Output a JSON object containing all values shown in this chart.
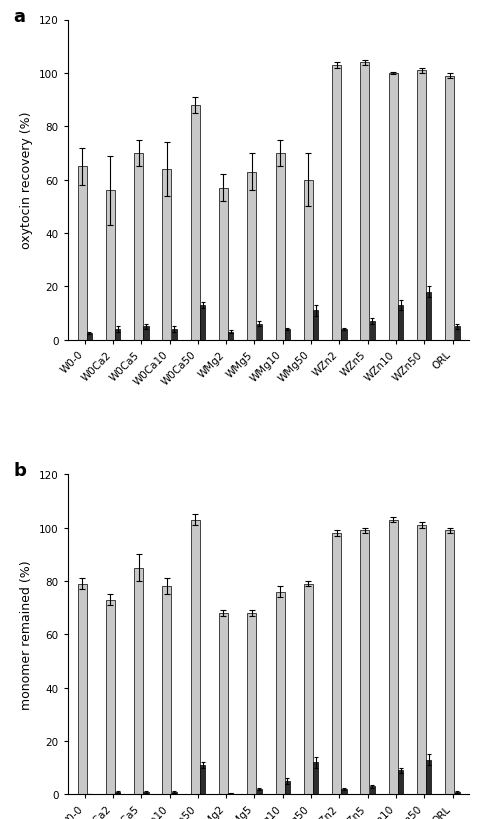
{
  "categories": [
    "W0-0",
    "W0Ca2",
    "W0Ca5",
    "W0Ca10",
    "W0Ca50",
    "WMg2",
    "WMg5",
    "WMg10",
    "WMg50",
    "WZn2",
    "WZn5",
    "WZn10",
    "WZn50",
    "ORL"
  ],
  "panel_a": {
    "ylabel": "oxytocin recovery (%)",
    "light_bars": [
      65,
      56,
      70,
      64,
      88,
      57,
      63,
      70,
      60,
      103,
      104,
      100,
      101,
      99
    ],
    "dark_bars": [
      2.5,
      4,
      5,
      4,
      13,
      3,
      6,
      4,
      11,
      4,
      7,
      13,
      18,
      5
    ],
    "light_err": [
      7,
      13,
      5,
      10,
      3,
      5,
      7,
      5,
      10,
      1,
      1,
      0.5,
      1,
      1
    ],
    "dark_err": [
      0.5,
      1,
      1,
      1,
      1,
      0.5,
      1,
      0.5,
      2,
      0.5,
      1,
      2,
      2,
      1
    ],
    "ylim": [
      0,
      120
    ],
    "yticks": [
      0,
      20,
      40,
      60,
      80,
      100,
      120
    ]
  },
  "panel_b": {
    "ylabel": "monomer remained (%)",
    "light_bars": [
      79,
      73,
      85,
      78,
      103,
      68,
      68,
      76,
      79,
      98,
      99,
      103,
      101,
      99
    ],
    "dark_bars": [
      0,
      1,
      1,
      1,
      11,
      0.5,
      2,
      5,
      12,
      2,
      3,
      9,
      13,
      1
    ],
    "light_err": [
      2,
      2,
      5,
      3,
      2,
      1,
      1,
      2,
      1,
      1,
      1,
      1,
      1,
      1
    ],
    "dark_err": [
      0,
      0.3,
      0.3,
      0.3,
      1,
      0.2,
      0.5,
      1,
      2,
      0.5,
      0.5,
      1,
      2,
      0.3
    ],
    "ylim": [
      0,
      120
    ],
    "yticks": [
      0,
      20,
      40,
      60,
      80,
      100,
      120
    ]
  },
  "light_color": "#c8c8c8",
  "dark_color": "#2d2d2d",
  "light_bar_width": 0.32,
  "dark_bar_width": 0.18,
  "label_a": "a",
  "label_b": "b",
  "tick_fontsize": 7.5,
  "ylabel_fontsize": 9,
  "label_fontsize": 13
}
